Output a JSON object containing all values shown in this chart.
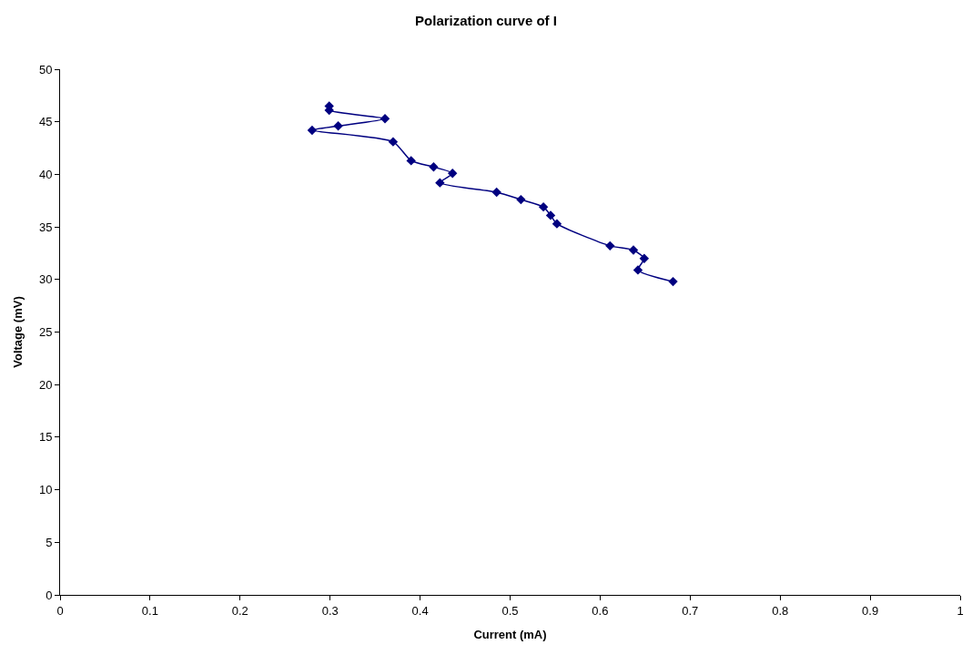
{
  "chart_data": {
    "type": "line",
    "title": "Polarization curve of I",
    "xlabel": "Current (mA)",
    "ylabel": "Voltage (mV)",
    "series": [
      {
        "color": "#000080",
        "x": [
          0.299,
          0.299,
          0.361,
          0.309,
          0.28,
          0.37,
          0.39,
          0.415,
          0.436,
          0.422,
          0.485,
          0.512,
          0.537,
          0.545,
          0.552,
          0.611,
          0.637,
          0.649,
          0.642,
          0.681
        ],
        "values": [
          46.5,
          46.1,
          45.3,
          44.6,
          44.2,
          43.1,
          41.3,
          40.7,
          40.1,
          39.2,
          38.3,
          37.6,
          36.9,
          36.1,
          35.3,
          33.2,
          32.8,
          32.0,
          30.9,
          29.8
        ]
      }
    ],
    "xlim": [
      0,
      1
    ],
    "xticks": [
      0,
      0.1,
      0.2,
      0.3,
      0.4,
      0.5,
      0.6,
      0.7,
      0.8,
      0.9,
      1
    ],
    "ylim": [
      0,
      50
    ],
    "yticks": [
      0,
      5,
      10,
      15,
      20,
      25,
      30,
      35,
      40,
      45,
      50
    ],
    "marker": "diamond",
    "line_style": "solid",
    "grid": false,
    "legend": false
  }
}
